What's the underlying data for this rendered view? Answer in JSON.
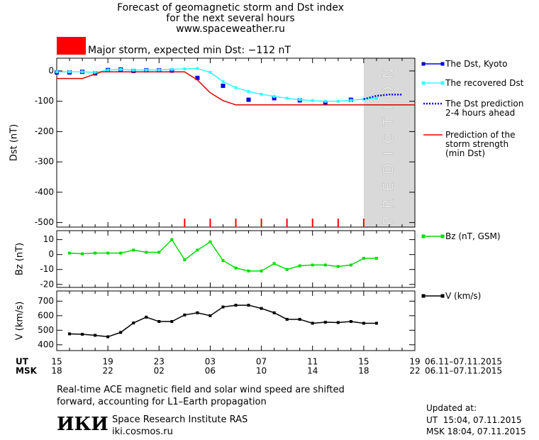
{
  "time_axis": {
    "xlim": [
      0,
      28
    ],
    "ut_label": "UT",
    "msk_label": "MSK",
    "ut_ticks": [
      {
        "value": 0,
        "label": "15"
      },
      {
        "value": 4,
        "label": "19"
      },
      {
        "value": 8,
        "label": "23"
      },
      {
        "value": 12,
        "label": "03"
      },
      {
        "value": 16,
        "label": "07"
      },
      {
        "value": 20,
        "label": "11"
      },
      {
        "value": 24,
        "label": "15"
      },
      {
        "value": 28,
        "label": "19"
      }
    ],
    "msk_ticks": [
      {
        "value": 0,
        "label": "18"
      },
      {
        "value": 4,
        "label": "22"
      },
      {
        "value": 8,
        "label": "02"
      },
      {
        "value": 12,
        "label": "06"
      },
      {
        "value": 16,
        "label": "10"
      },
      {
        "value": 20,
        "label": "14"
      },
      {
        "value": 24,
        "label": "18"
      },
      {
        "value": 28,
        "label": "22"
      }
    ],
    "ut_range": "06.11–07.11.2015",
    "msk_range": "06.11–07.11.2015"
  },
  "chart_data": [
    {
      "type": "line",
      "title_lines": [
        "Forecast of geomagnetic storm and Dst index",
        "for the next several hours",
        "www.spaceweather.ru"
      ],
      "annotation": "Major storm, expected min Dst: −112 nT",
      "annotation_color": "#ff0000",
      "ylabel": "Dst (nT)",
      "ylim": [
        -515,
        42
      ],
      "yticks": [
        0,
        -100,
        -200,
        -300,
        -400,
        -500
      ],
      "prediction_band": {
        "label": "PREDICTION",
        "xlim": [
          24,
          28
        ],
        "color": "#d9d9d9"
      },
      "markers": [
        10,
        12,
        14,
        16,
        18,
        20,
        22,
        24
      ],
      "marker_color": "#ff0000",
      "series": [
        {
          "name": "The Dst, Kyoto",
          "color": "#0000dd",
          "line": "none",
          "marker": "square",
          "x": [
            0,
            1,
            2,
            3,
            4,
            5,
            6,
            7,
            8,
            9,
            11,
            13,
            15,
            17,
            19,
            21,
            23
          ],
          "values": [
            -5,
            -5,
            -3,
            -8,
            3,
            5,
            0,
            2,
            2,
            1,
            -23,
            -49,
            -95,
            -90,
            -97,
            -106,
            -95
          ]
        },
        {
          "name": "The recovered Dst",
          "color": "#33ffff",
          "line": "solid",
          "marker": "small",
          "x": [
            0,
            1,
            2,
            3,
            4,
            5,
            6,
            7,
            8,
            9,
            10,
            11,
            12,
            13,
            14,
            15,
            16,
            17,
            18,
            19,
            20,
            21,
            22,
            23,
            24,
            25
          ],
          "values": [
            -3,
            -3,
            -3,
            -5,
            3,
            5,
            3,
            3,
            3,
            5,
            7,
            8,
            -5,
            -35,
            -55,
            -68,
            -77,
            -84,
            -90,
            -95,
            -98,
            -100,
            -100,
            -97,
            -93,
            -90
          ]
        },
        {
          "name": "The Dst prediction\n2-4 hours ahead",
          "color": "#0000dd",
          "line": "dotted",
          "marker": "none",
          "x": [
            24,
            25,
            26,
            27
          ],
          "values": [
            -93,
            -82,
            -78,
            -78
          ]
        },
        {
          "name": "Prediction of the\nstorm strength\n(min Dst)",
          "color": "#dd0000",
          "line": "solid",
          "marker": "none",
          "x": [
            0,
            2,
            3.5,
            10,
            11,
            12,
            13,
            14,
            28
          ],
          "values": [
            -25,
            -25,
            -3,
            -3,
            -30,
            -72,
            -98,
            -112,
            -112
          ]
        }
      ]
    },
    {
      "type": "line",
      "ylabel": "Bz (nT)",
      "ylim": [
        -22,
        16
      ],
      "yticks": [
        10,
        0,
        -10,
        -20
      ],
      "series": [
        {
          "name": "Bz (nT, GSM)",
          "color": "#00dd00",
          "line": "solid",
          "marker": "small",
          "x": [
            1,
            2,
            3,
            4,
            5,
            6,
            7,
            8,
            9,
            10,
            11,
            12,
            13,
            14,
            15,
            16,
            17,
            18,
            19,
            20,
            21,
            22,
            23,
            24,
            25
          ],
          "values": [
            1,
            0.5,
            1,
            1,
            1,
            3,
            1.5,
            1.5,
            10,
            -3.5,
            3,
            8.5,
            -4,
            -9,
            -11,
            -11,
            -6,
            -10,
            -7.5,
            -7,
            -7,
            -8,
            -7,
            -2.5,
            -2.5
          ]
        }
      ]
    },
    {
      "type": "line",
      "ylabel": "V (km/s)",
      "ylim": [
        360,
        770
      ],
      "yticks": [
        700,
        600,
        500,
        400
      ],
      "series": [
        {
          "name": "V (km/s)",
          "color": "#000000",
          "line": "solid",
          "marker": "small",
          "x": [
            1,
            2,
            3,
            4,
            5,
            6,
            7,
            8,
            9,
            10,
            11,
            12,
            13,
            14,
            15,
            16,
            17,
            18,
            19,
            20,
            21,
            22,
            23,
            24,
            25
          ],
          "values": [
            475,
            472,
            465,
            455,
            485,
            550,
            590,
            560,
            560,
            605,
            620,
            600,
            660,
            672,
            672,
            650,
            620,
            575,
            575,
            548,
            555,
            553,
            560,
            548,
            548
          ]
        }
      ]
    }
  ],
  "footer": {
    "note": "Real-time ACE magnetic field and solar wind speed are shifted\nforward, accounting for L1–Earth propagation",
    "logo": "ИКИ",
    "institute": "Space Research Institute RAS",
    "site": "iki.cosmos.ru",
    "updated": "Updated at:",
    "updated_ut": "UT  15:04, 07.11.2015",
    "updated_msk": "MSK 18:04, 07.11.2015"
  }
}
